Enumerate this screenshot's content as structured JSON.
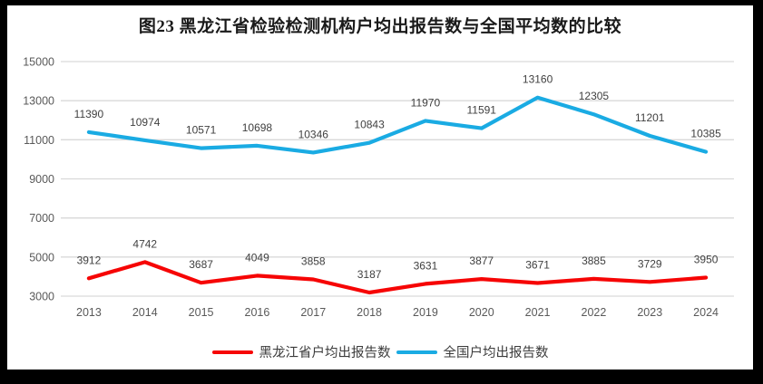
{
  "title": "图23 黑龙江省检验检测机构户均出报告数与全国平均数的比较",
  "colors": {
    "heilongjiang_red": "#f60505",
    "national_blue": "#1aabe3",
    "gridline": "#d9d9d9",
    "axis_text": "#595959",
    "data_label_text": "#404040",
    "frame_border": "#000000",
    "background": "#ffffff"
  },
  "chart_data": {
    "type": "line",
    "title": "图23 黑龙江省检验检测机构户均出报告数与全国平均数的比较",
    "categories": [
      "2013",
      "2014",
      "2015",
      "2016",
      "2017",
      "2018",
      "2019",
      "2020",
      "2021",
      "2022",
      "2023",
      "2024"
    ],
    "series": [
      {
        "name": "黑龙江省户均出报告数",
        "color": "#f60505",
        "values": [
          3912,
          4742,
          3687,
          4049,
          3858,
          3187,
          3631,
          3877,
          3671,
          3885,
          3729,
          3950
        ]
      },
      {
        "name": "全国户均出报告数",
        "color": "#1aabe3",
        "values": [
          11390,
          10974,
          10571,
          10698,
          10346,
          10843,
          11970,
          11591,
          13160,
          12305,
          11201,
          10385
        ]
      }
    ],
    "xlabel": "",
    "ylabel": "",
    "ylim": [
      3000,
      15000
    ],
    "yticks": [
      3000,
      5000,
      7000,
      9000,
      11000,
      13000,
      15000
    ],
    "grid": true,
    "data_labels": true,
    "legend_position": "bottom"
  }
}
